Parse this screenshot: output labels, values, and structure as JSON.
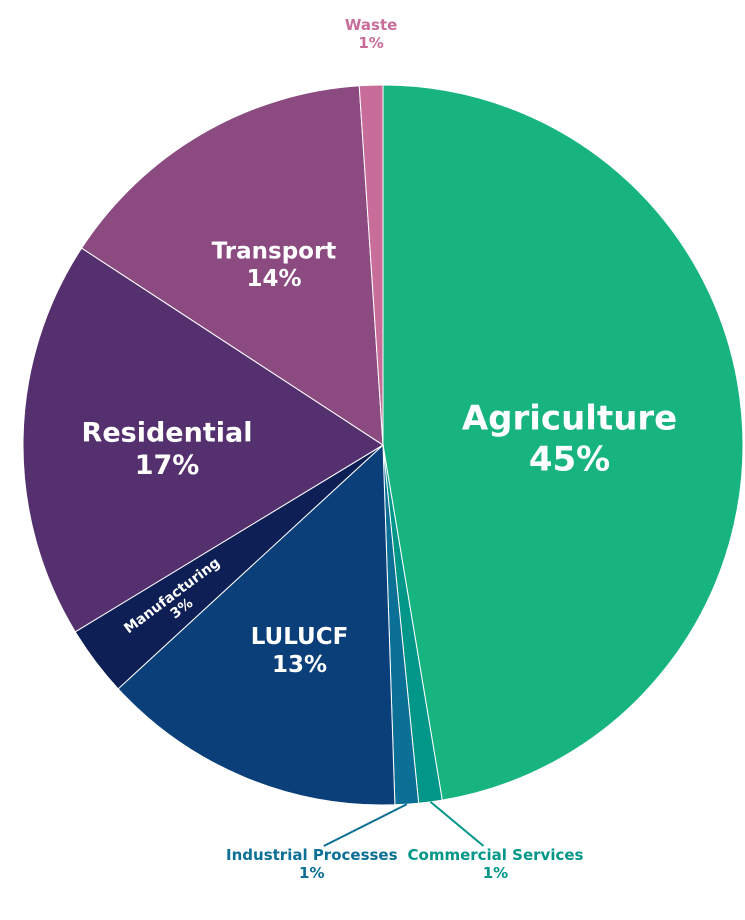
{
  "chart_data": {
    "type": "pie",
    "categories": [
      "Agriculture",
      "Commercial Services",
      "Industrial Processes",
      "LULUCF",
      "Manufacturing",
      "Residential",
      "Transport",
      "Waste"
    ],
    "values": [
      45,
      1,
      1,
      13,
      3,
      17,
      14,
      1
    ],
    "value_labels": [
      "45%",
      "1%",
      "1%",
      "13%",
      "3%",
      "17%",
      "14%",
      "1%"
    ],
    "colors": [
      "#17b47f",
      "#009688",
      "#0b6f96",
      "#0b3f7a",
      "#0d1f55",
      "#55306f",
      "#8b4a80",
      "#c86c9a"
    ]
  }
}
